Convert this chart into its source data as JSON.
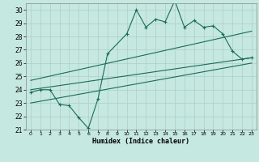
{
  "title": "",
  "xlabel": "Humidex (Indice chaleur)",
  "ylabel": "",
  "background_color": "#c5e8e0",
  "line_color": "#1a6b5a",
  "grid_color": "#b0cccc",
  "xlim": [
    -0.5,
    23.5
  ],
  "ylim": [
    21,
    30.5
  ],
  "xticks": [
    0,
    1,
    2,
    3,
    4,
    5,
    6,
    7,
    8,
    9,
    10,
    11,
    12,
    13,
    14,
    15,
    16,
    17,
    18,
    19,
    20,
    21,
    22,
    23
  ],
  "yticks": [
    21,
    22,
    23,
    24,
    25,
    26,
    27,
    28,
    29,
    30
  ],
  "main_x": [
    0,
    1,
    2,
    3,
    4,
    5,
    6,
    7,
    8,
    10,
    11,
    12,
    13,
    14,
    15,
    16,
    17,
    18,
    19,
    20,
    21,
    22,
    23
  ],
  "main_y": [
    23.8,
    24.0,
    24.0,
    22.9,
    22.8,
    21.9,
    21.1,
    23.3,
    26.7,
    28.2,
    30.0,
    28.7,
    29.3,
    29.1,
    30.7,
    28.7,
    29.2,
    28.7,
    28.8,
    28.2,
    26.9,
    26.3,
    26.4
  ],
  "trend1_x": [
    0,
    23
  ],
  "trend1_y": [
    24.0,
    26.4
  ],
  "trend2_x": [
    0,
    23
  ],
  "trend2_y": [
    24.7,
    28.4
  ],
  "trend3_x": [
    0,
    23
  ],
  "trend3_y": [
    23.0,
    26.0
  ]
}
